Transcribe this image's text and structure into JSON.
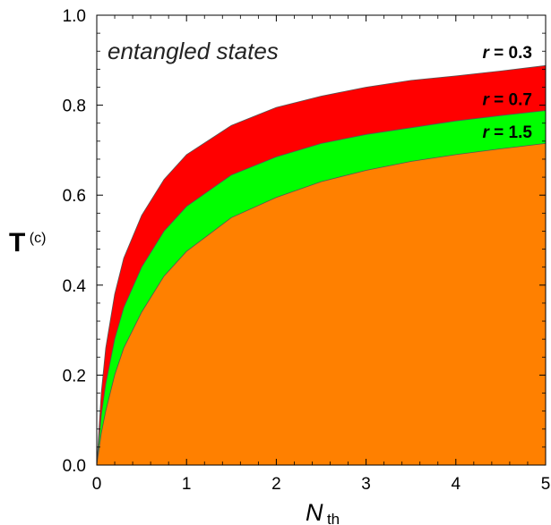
{
  "chart_data": {
    "type": "area",
    "title": "",
    "xlabel": {
      "main": "N",
      "sub": "th"
    },
    "ylabel": {
      "main": "T",
      "sup": "(c)"
    },
    "xlim": [
      0,
      5
    ],
    "ylim": [
      0,
      1.0
    ],
    "xticks": [
      0,
      1,
      2,
      3,
      4,
      5
    ],
    "yticks": [
      0.0,
      0.2,
      0.4,
      0.6,
      0.8,
      1.0
    ],
    "xtick_labels": [
      "0",
      "1",
      "2",
      "3",
      "4",
      "5"
    ],
    "ytick_labels": [
      "0.0",
      "0.2",
      "0.4",
      "0.6",
      "0.8",
      "1.0"
    ],
    "annotation": "entangled states",
    "series": [
      {
        "name": "r = 0.3",
        "color": "#ff0000",
        "x": [
          0,
          0.05,
          0.1,
          0.2,
          0.3,
          0.5,
          0.75,
          1.0,
          1.5,
          2.0,
          2.5,
          3.0,
          3.5,
          4.0,
          4.5,
          5.0
        ],
        "y": [
          0,
          0.16,
          0.26,
          0.38,
          0.46,
          0.555,
          0.635,
          0.69,
          0.755,
          0.795,
          0.82,
          0.84,
          0.855,
          0.865,
          0.876,
          0.888
        ]
      },
      {
        "name": "r = 0.7",
        "color": "#00ff00",
        "x": [
          0,
          0.05,
          0.1,
          0.2,
          0.3,
          0.5,
          0.75,
          1.0,
          1.5,
          2.0,
          2.5,
          3.0,
          3.5,
          4.0,
          4.5,
          5.0
        ],
        "y": [
          0,
          0.11,
          0.18,
          0.28,
          0.35,
          0.44,
          0.52,
          0.575,
          0.645,
          0.685,
          0.715,
          0.735,
          0.75,
          0.765,
          0.777,
          0.788
        ]
      },
      {
        "name": "r = 1.5",
        "color": "#ff8000",
        "x": [
          0,
          0.05,
          0.1,
          0.2,
          0.3,
          0.5,
          0.75,
          1.0,
          1.5,
          2.0,
          2.5,
          3.0,
          3.5,
          4.0,
          4.5,
          5.0
        ],
        "y": [
          0,
          0.07,
          0.12,
          0.2,
          0.26,
          0.34,
          0.42,
          0.475,
          0.55,
          0.595,
          0.63,
          0.655,
          0.675,
          0.69,
          0.703,
          0.715
        ]
      }
    ],
    "series_labels": [
      {
        "text": "r",
        "value": " = 0.3",
        "x": 4.85,
        "y": 0.905
      },
      {
        "text": "r",
        "value": " = 0.7",
        "x": 4.85,
        "y": 0.8
      },
      {
        "text": "r",
        "value": " = 1.5",
        "x": 4.85,
        "y": 0.728
      }
    ]
  }
}
